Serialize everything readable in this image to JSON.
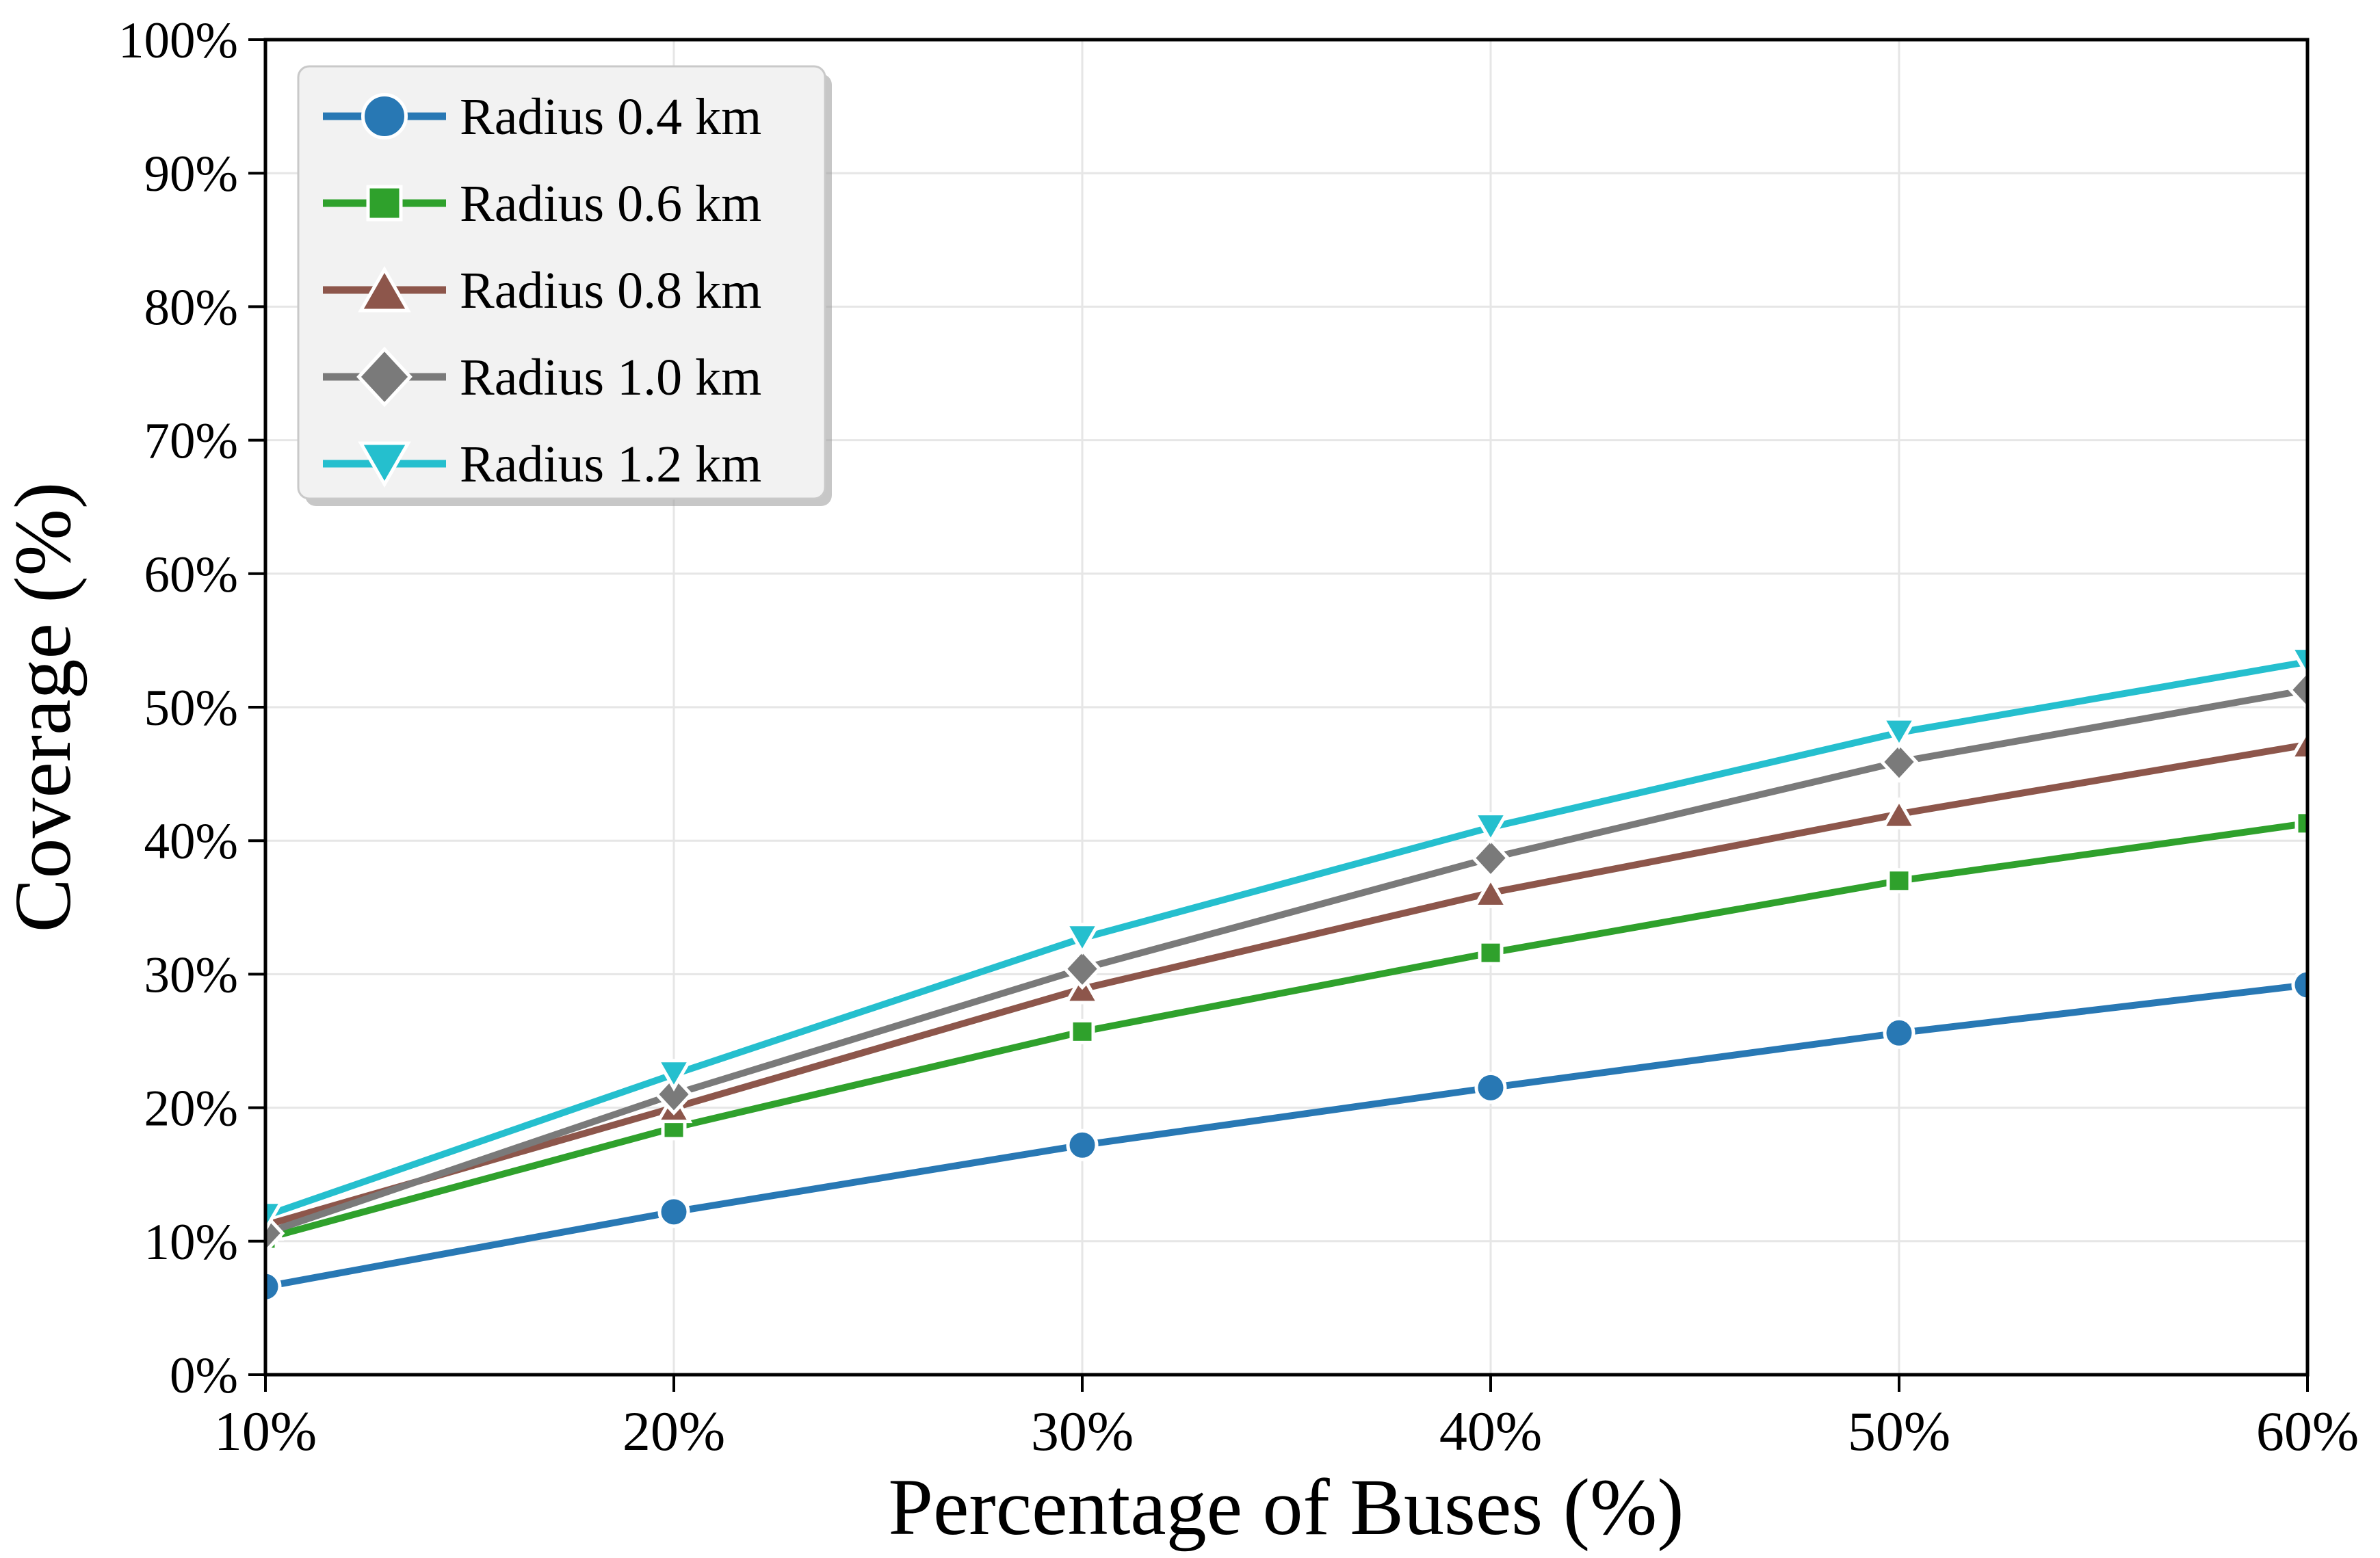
{
  "figure": {
    "background": "#ffffff"
  },
  "chart_data": {
    "type": "line",
    "title": "",
    "xlabel": "Percentage of Buses (%)",
    "ylabel": "Coverage (%)",
    "x": [
      10,
      20,
      30,
      40,
      50,
      60
    ],
    "x_tick_labels": [
      "10%",
      "20%",
      "30%",
      "40%",
      "50%",
      "60%"
    ],
    "y_ticks": [
      0,
      10,
      20,
      30,
      40,
      50,
      60,
      70,
      80,
      90,
      100
    ],
    "y_tick_labels": [
      "0%",
      "10%",
      "20%",
      "30%",
      "40%",
      "50%",
      "60%",
      "70%",
      "80%",
      "90%",
      "100%"
    ],
    "xlim": [
      10,
      60
    ],
    "ylim": [
      0,
      100
    ],
    "grid": true,
    "legend_position": "upper-left",
    "series": [
      {
        "name": "Radius 0.4 km",
        "color": "#2878b4",
        "marker": "circle",
        "values": [
          6.6,
          12.2,
          17.2,
          21.5,
          25.6,
          29.2
        ]
      },
      {
        "name": "Radius 0.6 km",
        "color": "#2fa12c",
        "marker": "square",
        "values": [
          10.2,
          18.5,
          25.7,
          31.6,
          37.0,
          41.3
        ]
      },
      {
        "name": "Radius 0.8 km",
        "color": "#8d564b",
        "marker": "triangle-up",
        "values": [
          11.2,
          20.0,
          28.9,
          36.1,
          42.0,
          47.2
        ]
      },
      {
        "name": "Radius 1.0 km",
        "color": "#7a7a7a",
        "marker": "diamond",
        "values": [
          10.6,
          21.0,
          30.4,
          38.7,
          45.9,
          51.3
        ]
      },
      {
        "name": "Radius 1.2 km",
        "color": "#25bfce",
        "marker": "triangle-down",
        "values": [
          11.9,
          22.5,
          32.7,
          41.0,
          48.1,
          53.4
        ]
      }
    ],
    "colors": {
      "grid": "#e6e6e6",
      "axis": "#000000",
      "legend_bg": "#f2f2f2",
      "legend_border": "#c9c9c9",
      "legend_shadow": "#999999",
      "marker_edge": "#ffffff"
    }
  }
}
